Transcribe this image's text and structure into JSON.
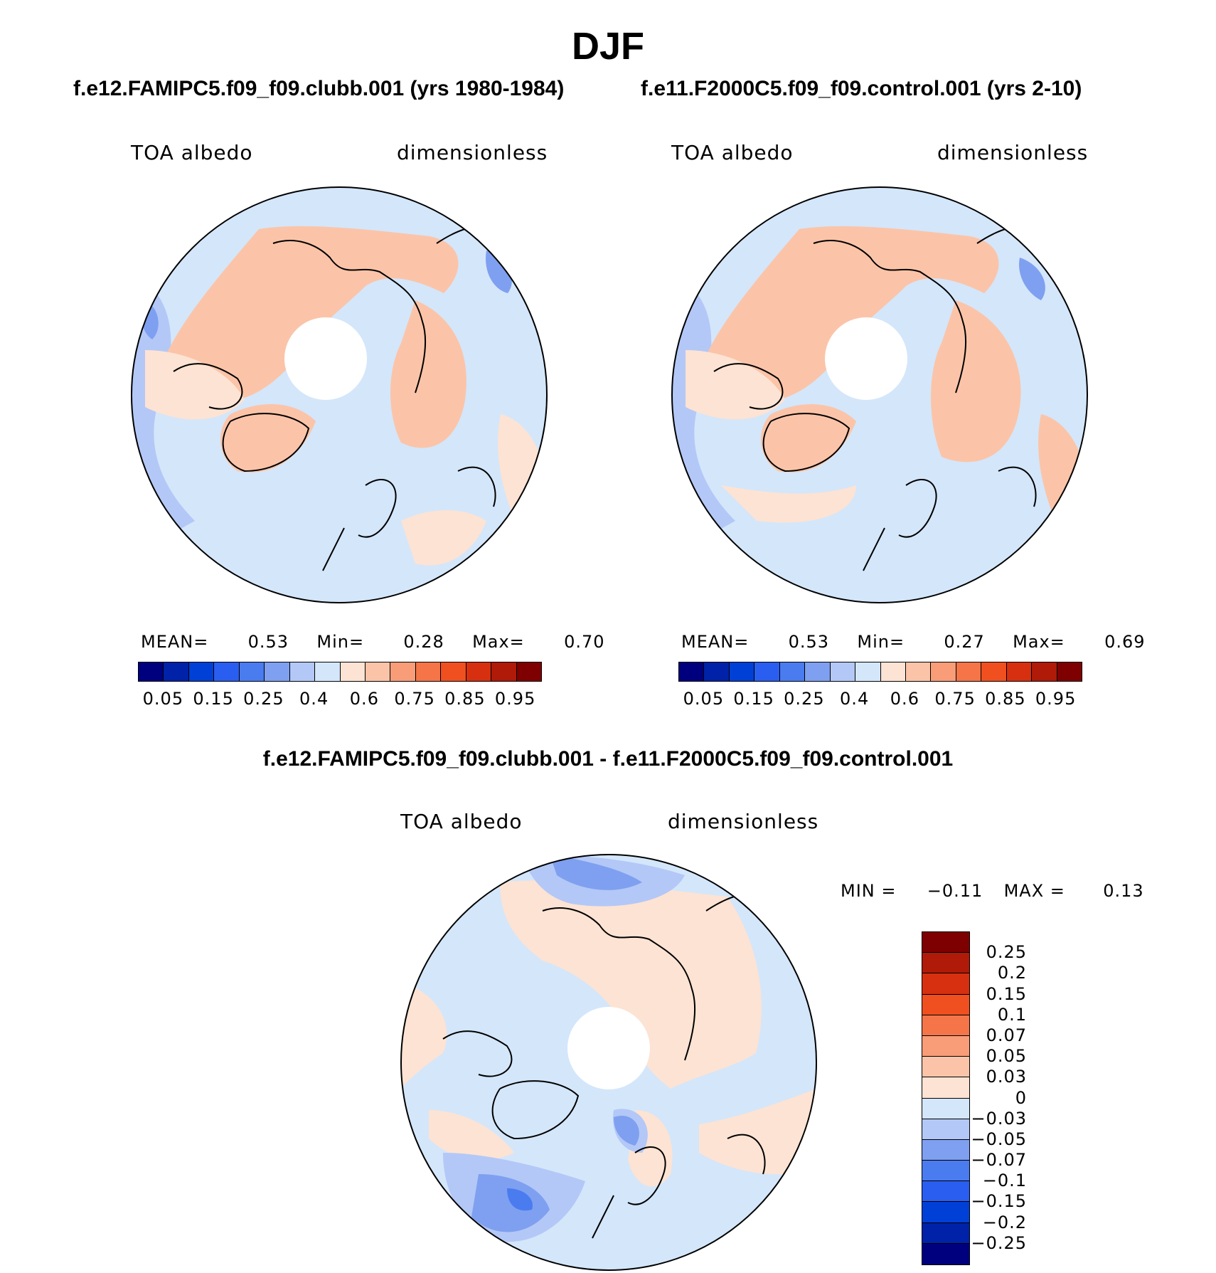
{
  "figure": {
    "title": "DJF",
    "colors": {
      "abs_levels": [
        "#00007f",
        "#0022a8",
        "#0040d6",
        "#2a5ef0",
        "#4a7cf0",
        "#7fa0f0",
        "#b3c8f7",
        "#d4e6fa",
        "#fde3d3",
        "#fbc4a8",
        "#f99d78",
        "#f57548",
        "#f05020",
        "#d63010",
        "#b01a08",
        "#7f0000"
      ],
      "diff_levels": [
        "#00007f",
        "#0022a8",
        "#0040d6",
        "#2a5ef0",
        "#4a7cf0",
        "#7fa0f0",
        "#b3c8f7",
        "#d4e6fa",
        "#fde3d3",
        "#fbc4a8",
        "#f99d78",
        "#f57548",
        "#f05020",
        "#d63010",
        "#b01a08",
        "#7f0000"
      ],
      "land_outline": "#000000",
      "pole_mask": "#ffffff"
    }
  },
  "chart_data": [
    {
      "type": "heatmap",
      "projection": "north-polar-stereographic",
      "case_title": "f.e12.FAMIPC5.f09_f09.clubb.001 (yrs 1980-1984)",
      "left_label": "TOA albedo",
      "right_label": "dimensionless",
      "stats": {
        "mean_label": "MEAN=",
        "mean": "0.53",
        "min_label": "Min=",
        "min": "0.28",
        "max_label": "Max=",
        "max": "0.70"
      },
      "colorbar_ticks": [
        "0.05",
        "0.15",
        "0.25",
        "0.4",
        "0.6",
        "0.75",
        "0.85",
        "0.95"
      ],
      "levels": [
        0.05,
        0.1,
        0.15,
        0.2,
        0.25,
        0.3,
        0.4,
        0.5,
        0.6,
        0.65,
        0.75,
        0.8,
        0.85,
        0.9,
        0.95
      ]
    },
    {
      "type": "heatmap",
      "projection": "north-polar-stereographic",
      "case_title": "f.e11.F2000C5.f09_f09.control.001 (yrs 2-10)",
      "left_label": "TOA albedo",
      "right_label": "dimensionless",
      "stats": {
        "mean_label": "MEAN=",
        "mean": "0.53",
        "min_label": "Min=",
        "min": "0.27",
        "max_label": "Max=",
        "max": "0.69"
      },
      "colorbar_ticks": [
        "0.05",
        "0.15",
        "0.25",
        "0.4",
        "0.6",
        "0.75",
        "0.85",
        "0.95"
      ],
      "levels": [
        0.05,
        0.1,
        0.15,
        0.2,
        0.25,
        0.3,
        0.4,
        0.5,
        0.6,
        0.65,
        0.75,
        0.8,
        0.85,
        0.9,
        0.95
      ]
    },
    {
      "type": "heatmap",
      "projection": "north-polar-stereographic",
      "case_title": "f.e12.FAMIPC5.f09_f09.clubb.001 - f.e11.F2000C5.f09_f09.control.001",
      "left_label": "TOA albedo",
      "right_label": "dimensionless",
      "stats": {
        "min_label": "MIN =",
        "min": "−0.11",
        "max_label": "MAX =",
        "max": "0.13"
      },
      "colorbar_ticks": [
        "0.25",
        "0.2",
        "0.15",
        "0.1",
        "0.07",
        "0.05",
        "0.03",
        "0",
        "−0.03",
        "−0.05",
        "−0.07",
        "−0.1",
        "−0.15",
        "−0.2",
        "−0.25"
      ],
      "levels": [
        -0.25,
        -0.2,
        -0.15,
        -0.1,
        -0.07,
        -0.05,
        -0.03,
        0,
        0.03,
        0.05,
        0.07,
        0.1,
        0.15,
        0.2,
        0.25
      ]
    }
  ]
}
